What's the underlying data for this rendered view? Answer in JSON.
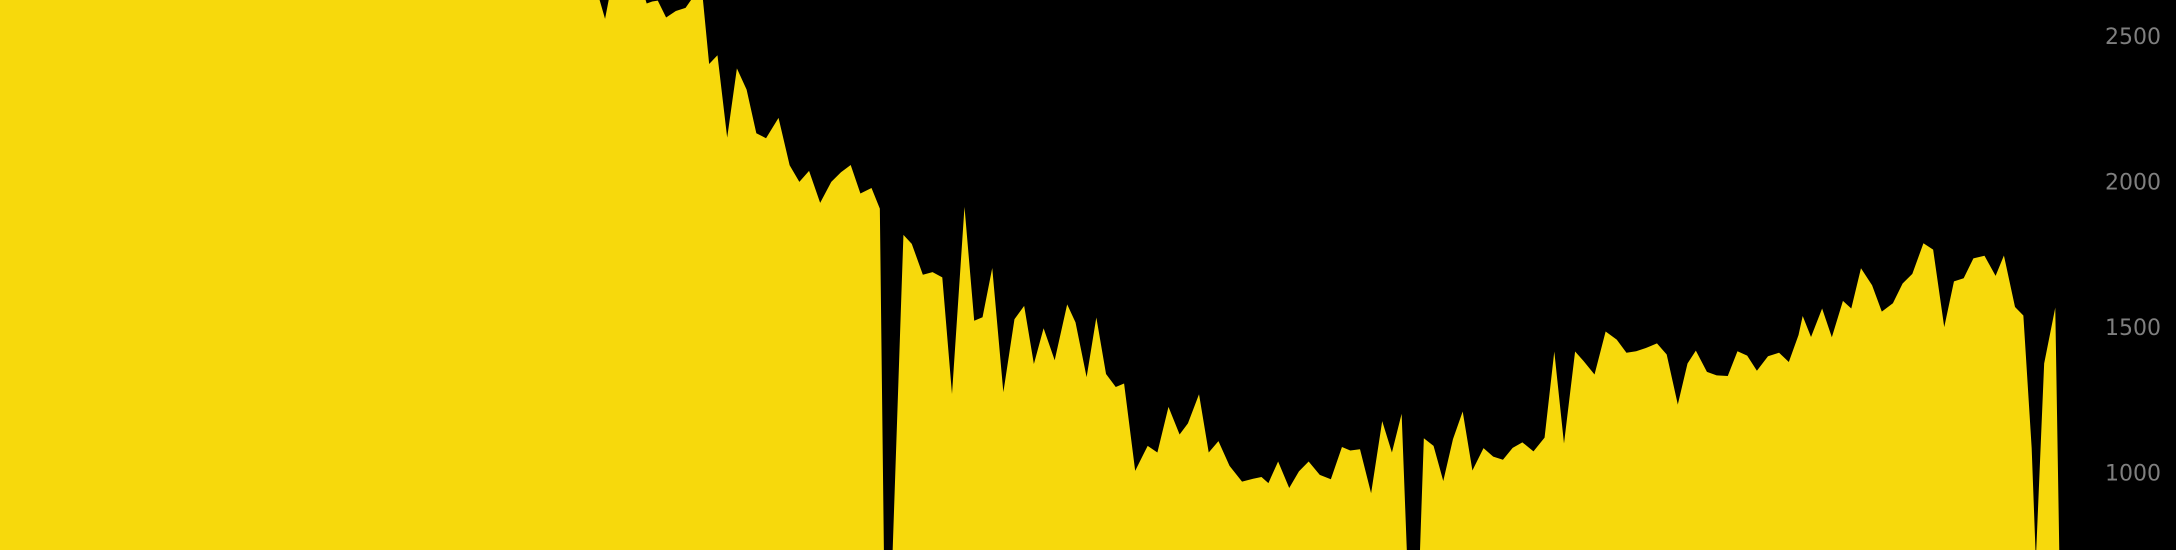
{
  "chart_data": {
    "type": "area",
    "title": "",
    "xlabel": "",
    "ylabel": "",
    "ylim": [
      740,
      2630
    ],
    "y_ticks": [
      {
        "value": 1000,
        "label": "1000"
      },
      {
        "value": 1500,
        "label": "1500"
      },
      {
        "value": 2000,
        "label": "2000"
      },
      {
        "value": 2500,
        "label": "2500"
      }
    ],
    "grid": false,
    "legend": "none",
    "colors": {
      "background": "#000000",
      "fill": "#f7d90c",
      "tick_label": "#7f7f7f"
    },
    "series": [
      {
        "points": [
          [
            0,
            2700
          ],
          [
            10,
            2700
          ],
          [
            20,
            2700
          ],
          [
            30,
            2700
          ],
          [
            40,
            2700
          ],
          [
            50,
            2700
          ],
          [
            60,
            2700
          ],
          [
            70,
            2700
          ],
          [
            80,
            2700
          ],
          [
            90,
            2700
          ],
          [
            100,
            2700
          ],
          [
            110,
            2700
          ],
          [
            120,
            2700
          ],
          [
            130,
            2700
          ],
          [
            140,
            2700
          ],
          [
            150,
            2700
          ],
          [
            160,
            2700
          ],
          [
            170,
            2700
          ],
          [
            180,
            2700
          ],
          [
            190,
            2700
          ],
          [
            200,
            2700
          ],
          [
            210,
            2700
          ],
          [
            220,
            2700
          ],
          [
            230,
            2700
          ],
          [
            240,
            2700
          ],
          [
            250,
            2700
          ],
          [
            260,
            2700
          ],
          [
            270,
            2700
          ],
          [
            280,
            2700
          ],
          [
            290,
            2700
          ],
          [
            300,
            2700
          ],
          [
            310,
            2700
          ],
          [
            320,
            2700
          ],
          [
            330,
            2700
          ],
          [
            340,
            2700
          ],
          [
            350,
            2700
          ],
          [
            360,
            2700
          ],
          [
            370,
            2700
          ],
          [
            380,
            2700
          ],
          [
            390,
            2700
          ],
          [
            400,
            2700
          ],
          [
            410,
            2700
          ],
          [
            420,
            2700
          ],
          [
            430,
            2700
          ],
          [
            436,
            2565
          ],
          [
            440,
            2700
          ],
          [
            445,
            2700
          ],
          [
            460,
            2700
          ],
          [
            463,
            2700
          ],
          [
            466,
            2618
          ],
          [
            470,
            2625
          ],
          [
            474,
            2628
          ],
          [
            480,
            2570
          ],
          [
            487,
            2592
          ],
          [
            494,
            2603
          ],
          [
            503,
            2700
          ],
          [
            506,
            2657
          ],
          [
            511,
            2410
          ],
          [
            517,
            2440
          ],
          [
            524,
            2157
          ],
          [
            531,
            2395
          ],
          [
            538,
            2322
          ],
          [
            545,
            2172
          ],
          [
            552,
            2155
          ],
          [
            561,
            2225
          ],
          [
            569,
            2062
          ],
          [
            576,
            2005
          ],
          [
            583,
            2043
          ],
          [
            591,
            1933
          ],
          [
            599,
            2005
          ],
          [
            606,
            2038
          ],
          [
            613,
            2063
          ],
          [
            620,
            1965
          ],
          [
            628,
            1984
          ],
          [
            634,
            1913
          ],
          [
            637,
            700
          ],
          [
            643,
            700
          ],
          [
            651,
            1823
          ],
          [
            657,
            1792
          ],
          [
            665,
            1686
          ],
          [
            672,
            1695
          ],
          [
            679,
            1677
          ],
          [
            686,
            1276
          ],
          [
            695,
            1919
          ],
          [
            702,
            1528
          ],
          [
            708,
            1540
          ],
          [
            715,
            1709
          ],
          [
            723,
            1282
          ],
          [
            731,
            1533
          ],
          [
            738,
            1579
          ],
          [
            745,
            1379
          ],
          [
            752,
            1502
          ],
          [
            760,
            1392
          ],
          [
            769,
            1584
          ],
          [
            775,
            1522
          ],
          [
            783,
            1334
          ],
          [
            790,
            1539
          ],
          [
            797,
            1345
          ],
          [
            804,
            1300
          ],
          [
            810,
            1312
          ],
          [
            818,
            1012
          ],
          [
            827,
            1098
          ],
          [
            834,
            1075
          ],
          [
            842,
            1232
          ],
          [
            850,
            1137
          ],
          [
            856,
            1175
          ],
          [
            864,
            1275
          ],
          [
            871,
            1075
          ],
          [
            878,
            1114
          ],
          [
            886,
            1029
          ],
          [
            895,
            975
          ],
          [
            903,
            985
          ],
          [
            909,
            991
          ],
          [
            914,
            970
          ],
          [
            921,
            1044
          ],
          [
            929,
            953
          ],
          [
            936,
            1010
          ],
          [
            943,
            1044
          ],
          [
            951,
            998
          ],
          [
            959,
            983
          ],
          [
            967,
            1094
          ],
          [
            973,
            1082
          ],
          [
            980,
            1086
          ],
          [
            988,
            935
          ],
          [
            996,
            1183
          ],
          [
            1003,
            1075
          ],
          [
            1010,
            1208
          ],
          [
            1014,
            700
          ],
          [
            1023,
            700
          ],
          [
            1026,
            1124
          ],
          [
            1033,
            1098
          ],
          [
            1040,
            977
          ],
          [
            1047,
            1121
          ],
          [
            1054,
            1216
          ],
          [
            1061,
            1013
          ],
          [
            1069,
            1090
          ],
          [
            1076,
            1061
          ],
          [
            1083,
            1050
          ],
          [
            1090,
            1091
          ],
          [
            1097,
            1110
          ],
          [
            1105,
            1079
          ],
          [
            1113,
            1126
          ],
          [
            1120,
            1422
          ],
          [
            1127,
            1106
          ],
          [
            1135,
            1422
          ],
          [
            1141,
            1390
          ],
          [
            1149,
            1343
          ],
          [
            1157,
            1491
          ],
          [
            1165,
            1463
          ],
          [
            1172,
            1418
          ],
          [
            1179,
            1423
          ],
          [
            1186,
            1434
          ],
          [
            1194,
            1450
          ],
          [
            1201,
            1412
          ],
          [
            1209,
            1240
          ],
          [
            1216,
            1381
          ],
          [
            1222,
            1425
          ],
          [
            1230,
            1352
          ],
          [
            1237,
            1340
          ],
          [
            1245,
            1338
          ],
          [
            1252,
            1423
          ],
          [
            1259,
            1408
          ],
          [
            1266,
            1356
          ],
          [
            1274,
            1406
          ],
          [
            1282,
            1418
          ],
          [
            1289,
            1386
          ],
          [
            1296,
            1479
          ],
          [
            1299,
            1544
          ],
          [
            1305,
            1472
          ],
          [
            1313,
            1570
          ],
          [
            1320,
            1471
          ],
          [
            1328,
            1596
          ],
          [
            1334,
            1570
          ],
          [
            1341,
            1708
          ],
          [
            1349,
            1650
          ],
          [
            1356,
            1559
          ],
          [
            1364,
            1588
          ],
          [
            1371,
            1656
          ],
          [
            1378,
            1689
          ],
          [
            1386,
            1794
          ],
          [
            1393,
            1772
          ],
          [
            1401,
            1506
          ],
          [
            1408,
            1663
          ],
          [
            1415,
            1674
          ],
          [
            1422,
            1742
          ],
          [
            1430,
            1751
          ],
          [
            1438,
            1682
          ],
          [
            1444,
            1752
          ],
          [
            1452,
            1575
          ],
          [
            1458,
            1546
          ],
          [
            1464,
            1090
          ],
          [
            1467,
            700
          ],
          [
            1473,
            1381
          ],
          [
            1481,
            1573
          ],
          [
            1484,
            700
          ]
        ]
      }
    ]
  }
}
